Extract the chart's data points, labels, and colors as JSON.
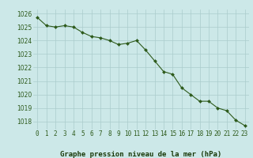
{
  "x": [
    0,
    1,
    2,
    3,
    4,
    5,
    6,
    7,
    8,
    9,
    10,
    11,
    12,
    13,
    14,
    15,
    16,
    17,
    18,
    19,
    20,
    21,
    22,
    23
  ],
  "y": [
    1025.7,
    1025.1,
    1025.0,
    1025.1,
    1025.0,
    1024.6,
    1024.3,
    1024.2,
    1024.0,
    1023.7,
    1023.8,
    1024.0,
    1023.3,
    1022.5,
    1021.7,
    1021.5,
    1020.5,
    1020.0,
    1019.5,
    1019.5,
    1019.0,
    1018.8,
    1018.1,
    1017.7
  ],
  "line_color": "#2d5a1b",
  "marker_color": "#2d5a1b",
  "bg_color": "#cce8e8",
  "grid_color": "#aacccc",
  "xlabel": "Graphe pression niveau de la mer (hPa)",
  "xlabel_color": "#1a3a0a",
  "ylabel_ticks": [
    1018,
    1019,
    1020,
    1021,
    1022,
    1023,
    1024,
    1025,
    1026
  ],
  "xlim": [
    -0.5,
    23.5
  ],
  "ylim": [
    1017.4,
    1026.3
  ],
  "tick_fontsize": 5.5,
  "label_fontsize": 6.5
}
